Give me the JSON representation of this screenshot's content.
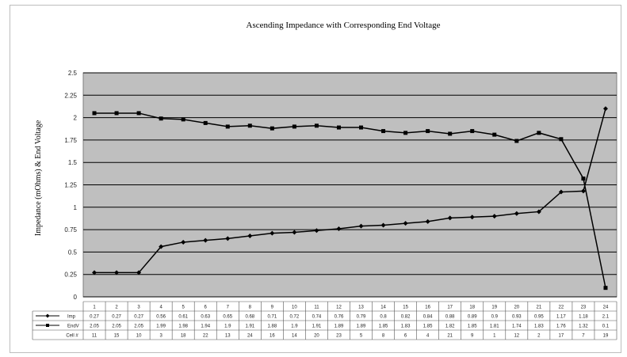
{
  "chart_data": {
    "type": "line",
    "title": "Ascending Impedance with Corresponding End Voltage",
    "ylabel": "Impedance (mOhms) & End Voltage",
    "xlabel": "",
    "ylim": [
      0,
      2.5
    ],
    "yticks": [
      0,
      0.25,
      0.5,
      0.75,
      1,
      1.25,
      1.5,
      1.75,
      2,
      2.25,
      2.5
    ],
    "ytick_labels": [
      "0",
      "0.25",
      "0.5",
      "0.75",
      "1",
      "1.25",
      "1.5",
      "1.75",
      "2",
      "2.25",
      "2.5"
    ],
    "grid": true,
    "categories": [
      "1",
      "2",
      "3",
      "4",
      "5",
      "6",
      "7",
      "8",
      "9",
      "10",
      "11",
      "12",
      "13",
      "14",
      "15",
      "16",
      "17",
      "18",
      "19",
      "20",
      "21",
      "22",
      "23",
      "24"
    ],
    "series": [
      {
        "name": "Imp",
        "marker": "diamond",
        "values": [
          0.27,
          0.27,
          0.27,
          0.56,
          0.61,
          0.63,
          0.65,
          0.68,
          0.71,
          0.72,
          0.74,
          0.76,
          0.79,
          0.8,
          0.82,
          0.84,
          0.88,
          0.89,
          0.9,
          0.93,
          0.95,
          1.17,
          1.18,
          2.1
        ]
      },
      {
        "name": "EndV",
        "marker": "square",
        "values": [
          2.05,
          2.05,
          2.05,
          1.99,
          1.98,
          1.94,
          1.9,
          1.91,
          1.88,
          1.9,
          1.91,
          1.89,
          1.89,
          1.85,
          1.83,
          1.85,
          1.82,
          1.85,
          1.81,
          1.74,
          1.83,
          1.76,
          1.32,
          0.1
        ]
      }
    ],
    "table": {
      "row_labels": [
        "Imp",
        "EndV",
        "Cell #"
      ],
      "rows": [
        [
          "0.27",
          "0.27",
          "0.27",
          "0.56",
          "0.61",
          "0.63",
          "0.65",
          "0.68",
          "0.71",
          "0.72",
          "0.74",
          "0.76",
          "0.79",
          "0.8",
          "0.82",
          "0.84",
          "0.88",
          "0.89",
          "0.9",
          "0.93",
          "0.95",
          "1.17",
          "1.18",
          "2.1"
        ],
        [
          "2.05",
          "2.05",
          "2.05",
          "1.99",
          "1.98",
          "1.94",
          "1.9",
          "1.91",
          "1.88",
          "1.9",
          "1.91",
          "1.89",
          "1.89",
          "1.85",
          "1.83",
          "1.85",
          "1.82",
          "1.85",
          "1.81",
          "1.74",
          "1.83",
          "1.76",
          "1.32",
          "0.1"
        ],
        [
          "11",
          "15",
          "10",
          "3",
          "18",
          "22",
          "13",
          "24",
          "16",
          "14",
          "20",
          "23",
          "5",
          "8",
          "6",
          "4",
          "21",
          "9",
          "1",
          "12",
          "2",
          "17",
          "7",
          "19"
        ]
      ]
    },
    "colors": {
      "plot_bg": "#bfbfbf",
      "line": "#000000",
      "grid": "#000000"
    }
  }
}
